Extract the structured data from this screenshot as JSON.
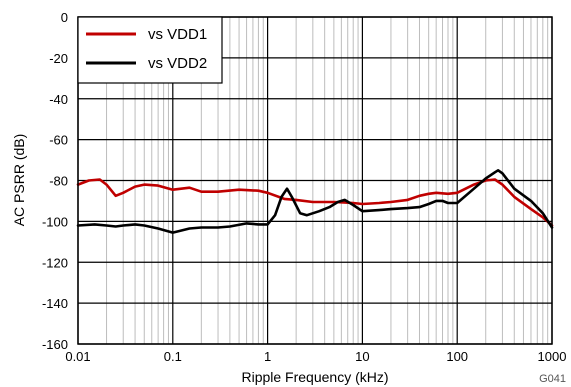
{
  "chart_data": {
    "type": "line",
    "x_scale": "log",
    "xlim": [
      0.01,
      1000
    ],
    "ylim": [
      -160,
      0
    ],
    "xlabel": "Ripple Frequency (kHz)",
    "ylabel": "AC PSRR (dB)",
    "x_ticks": [
      "0.01",
      "0.1",
      "1",
      "10",
      "100",
      "1000"
    ],
    "y_ticks": [
      "0",
      "-20",
      "-40",
      "-60",
      "-80",
      "-100",
      "-120",
      "-140",
      "-160"
    ],
    "figure_id": "G041",
    "grid": true,
    "legend_position": "top-left",
    "series": [
      {
        "name": "vs VDD1",
        "color": "#c00000",
        "points": [
          [
            0.01,
            -82
          ],
          [
            0.013,
            -80
          ],
          [
            0.017,
            -79.5
          ],
          [
            0.02,
            -82
          ],
          [
            0.025,
            -87.5
          ],
          [
            0.03,
            -86
          ],
          [
            0.04,
            -83
          ],
          [
            0.05,
            -82
          ],
          [
            0.07,
            -82.5
          ],
          [
            0.1,
            -84.5
          ],
          [
            0.15,
            -83.5
          ],
          [
            0.2,
            -85.5
          ],
          [
            0.3,
            -85.5
          ],
          [
            0.5,
            -84.5
          ],
          [
            0.8,
            -85
          ],
          [
            1.0,
            -86
          ],
          [
            1.5,
            -89
          ],
          [
            2.0,
            -89.5
          ],
          [
            3.0,
            -90.5
          ],
          [
            5.0,
            -90.5
          ],
          [
            8.0,
            -91
          ],
          [
            10,
            -91.5
          ],
          [
            15,
            -91
          ],
          [
            20,
            -90.5
          ],
          [
            30,
            -89.5
          ],
          [
            40,
            -87.5
          ],
          [
            50,
            -86.5
          ],
          [
            60,
            -86
          ],
          [
            80,
            -86.5
          ],
          [
            100,
            -86
          ],
          [
            150,
            -82
          ],
          [
            200,
            -80
          ],
          [
            250,
            -79.5
          ],
          [
            300,
            -82
          ],
          [
            400,
            -88
          ],
          [
            600,
            -94
          ],
          [
            800,
            -98
          ],
          [
            1000,
            -102
          ]
        ]
      },
      {
        "name": "vs VDD2",
        "color": "#000000",
        "points": [
          [
            0.01,
            -102
          ],
          [
            0.015,
            -101.5
          ],
          [
            0.02,
            -102
          ],
          [
            0.025,
            -102.5
          ],
          [
            0.03,
            -102
          ],
          [
            0.04,
            -101.5
          ],
          [
            0.05,
            -102
          ],
          [
            0.07,
            -103.5
          ],
          [
            0.1,
            -105.5
          ],
          [
            0.15,
            -103.5
          ],
          [
            0.2,
            -103
          ],
          [
            0.3,
            -103
          ],
          [
            0.4,
            -102.5
          ],
          [
            0.6,
            -101
          ],
          [
            0.8,
            -101.5
          ],
          [
            1.0,
            -101.5
          ],
          [
            1.2,
            -97
          ],
          [
            1.4,
            -88
          ],
          [
            1.6,
            -84
          ],
          [
            1.8,
            -88
          ],
          [
            2.2,
            -96
          ],
          [
            2.6,
            -97
          ],
          [
            3.5,
            -95
          ],
          [
            4.5,
            -93
          ],
          [
            5.5,
            -90.5
          ],
          [
            6.5,
            -89.5
          ],
          [
            8,
            -92
          ],
          [
            10,
            -95
          ],
          [
            15,
            -94.5
          ],
          [
            20,
            -94
          ],
          [
            30,
            -93.5
          ],
          [
            40,
            -93
          ],
          [
            50,
            -91.5
          ],
          [
            60,
            -90
          ],
          [
            70,
            -90
          ],
          [
            80,
            -91
          ],
          [
            100,
            -91
          ],
          [
            150,
            -84
          ],
          [
            200,
            -79
          ],
          [
            250,
            -76
          ],
          [
            270,
            -75
          ],
          [
            300,
            -76.5
          ],
          [
            400,
            -84
          ],
          [
            600,
            -90
          ],
          [
            800,
            -96
          ],
          [
            1000,
            -103
          ]
        ]
      }
    ]
  }
}
